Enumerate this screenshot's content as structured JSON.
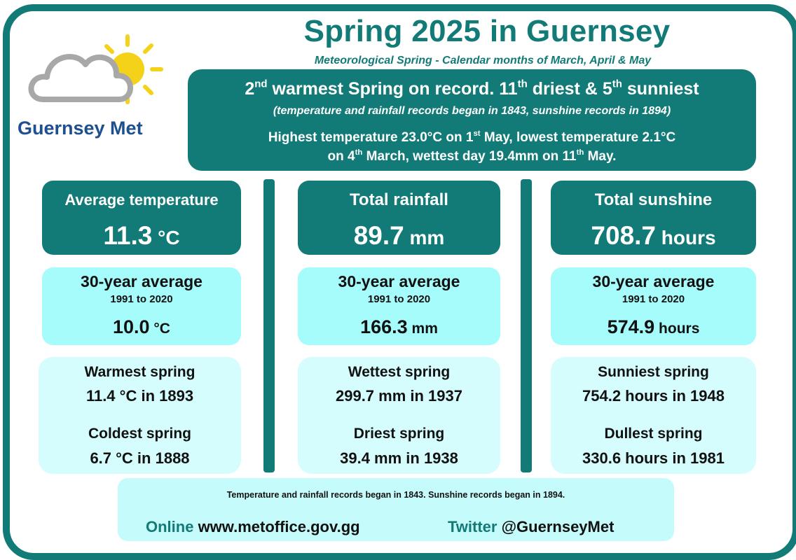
{
  "brand": {
    "name": "Guernsey Met"
  },
  "header": {
    "title": "Spring 2025 in Guernsey",
    "subtitle": "Meteorological  Spring  -  Calendar months of March, April & May"
  },
  "summary": {
    "rank_warm": "2",
    "rank_warm_suffix": "nd",
    "headline_mid": " warmest Spring on record. ",
    "rank_dry": "11",
    "rank_dry_suffix": "th",
    "headline_mid2": " driest & ",
    "rank_sun": "5",
    "rank_sun_suffix": "th",
    "headline_end": " sunniest",
    "note": "(temperature and rainfall records began in 1843, sunshine records in 1894)",
    "ext_a": "Highest temperature 23.0°C on 1",
    "ext_a_sup": "st",
    "ext_b": " May, lowest temperature 2.1°C",
    "ext_c": "on 4",
    "ext_c_sup": "th",
    "ext_d": " March, wettest day 19.4mm on 11",
    "ext_d_sup": "th",
    "ext_e": " May."
  },
  "columns": [
    {
      "label": "Average temperature",
      "value": "11.3",
      "unit": " °C",
      "avg_label": "30-year average",
      "avg_period": "1991 to 2020",
      "avg_value": "10.0",
      "avg_unit": " °C",
      "rec1_label": "Warmest spring",
      "rec1_value": "11.4 °C in 1893",
      "rec2_label": "Coldest spring",
      "rec2_value": "6.7 °C in 1888"
    },
    {
      "label": "Total rainfall",
      "value": "89.7",
      "unit": " mm",
      "avg_label": "30-year average",
      "avg_period": "1991 to 2020",
      "avg_value": "166.3",
      "avg_unit": " mm",
      "rec1_label": "Wettest spring",
      "rec1_value": "299.7 mm in 1937",
      "rec2_label": "Driest spring",
      "rec2_value": "39.4 mm in 1938"
    },
    {
      "label": "Total sunshine",
      "value": "708.7",
      "unit": " hours",
      "avg_label": "30-year average",
      "avg_period": "1991 to 2020",
      "avg_value": "574.9",
      "avg_unit": " hours",
      "rec1_label": "Sunniest spring",
      "rec1_value": "754.2 hours in 1948",
      "rec2_label": "Dullest spring",
      "rec2_value": "330.6 hours in 1981"
    }
  ],
  "footer": {
    "note": "Temperature and rainfall records began in 1843.   Sunshine records began in 1894.",
    "online_label": "Online",
    "online_value": " www.metoffice.gov.gg",
    "twitter_label": "Twitter",
    "twitter_value": " @GuernseyMet"
  },
  "colors": {
    "teal": "#127a77",
    "light_cyan": "#a6fbfb",
    "pale_cyan": "#d6fdfd",
    "sun": "#f5d21a",
    "cloud": "#a8a8a8",
    "brand_blue": "#1e4f8f"
  },
  "icons": [
    "sun-icon",
    "cloud-icon"
  ]
}
